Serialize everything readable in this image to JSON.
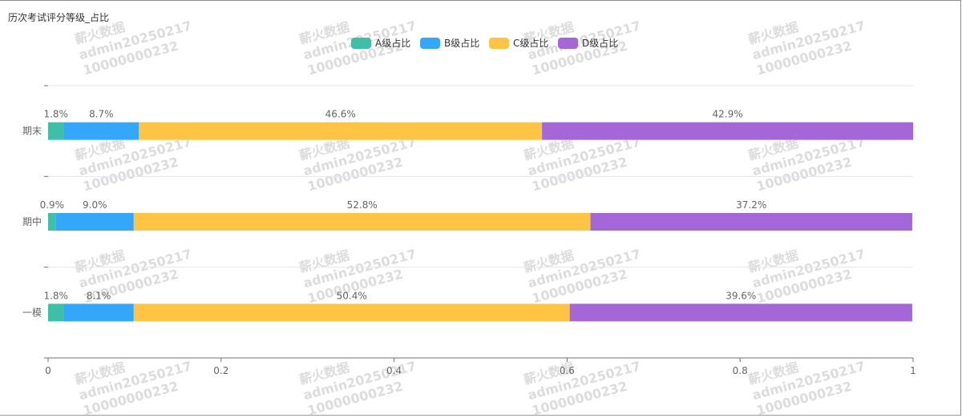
{
  "chart_data": {
    "type": "bar",
    "orientation": "horizontal",
    "stacked": true,
    "title": "历次考试评分等级_占比",
    "categories": [
      "一模",
      "期中",
      "期末"
    ],
    "series": [
      {
        "name": "A级占比",
        "color": "#3fbfa8",
        "values": [
          0.018,
          0.009,
          0.018
        ],
        "labels": [
          "1.8%",
          "0.9%",
          "1.8%"
        ]
      },
      {
        "name": "B级占比",
        "color": "#35a7fb",
        "values": [
          0.081,
          0.09,
          0.087
        ],
        "labels": [
          "8.1%",
          "9.0%",
          "8.7%"
        ]
      },
      {
        "name": "C级占比",
        "color": "#ffc443",
        "values": [
          0.504,
          0.528,
          0.466
        ],
        "labels": [
          "50.4%",
          "52.8%",
          "46.6%"
        ]
      },
      {
        "name": "D级占比",
        "color": "#a566d8",
        "values": [
          0.396,
          0.372,
          0.429
        ],
        "labels": [
          "39.6%",
          "37.2%",
          "42.9%"
        ]
      }
    ],
    "xlim": [
      0,
      1
    ],
    "xticks": [
      "0",
      "0.2",
      "0.4",
      "0.6",
      "0.8",
      "1"
    ],
    "legend_position": "top-center",
    "grid": true
  },
  "watermark": {
    "lines": [
      "薪火数据",
      "admin20250217",
      "10000000232"
    ],
    "color": "#dcdcdc"
  }
}
